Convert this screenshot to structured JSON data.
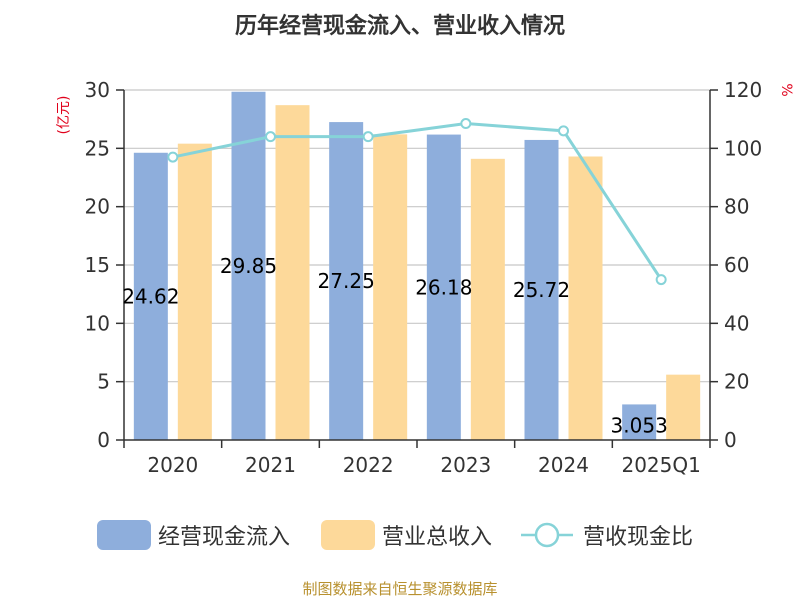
{
  "chart_data": {
    "type": "bar",
    "title": "历年经营现金流入、营业收入情况",
    "categories": [
      "2020",
      "2021",
      "2022",
      "2023",
      "2024",
      "2025Q1"
    ],
    "y_left": {
      "unit": "(亿元)",
      "ylim": [
        0,
        30
      ],
      "ticks": [
        0,
        5,
        10,
        15,
        20,
        25,
        30
      ]
    },
    "y_right": {
      "unit": "%",
      "ylim": [
        0,
        120
      ],
      "ticks": [
        0,
        20,
        40,
        60,
        80,
        100,
        120
      ]
    },
    "series": [
      {
        "name": "经营现金流入",
        "kind": "bar",
        "axis": "left",
        "color": "#8eaedc",
        "values": [
          24.62,
          29.85,
          27.25,
          26.18,
          25.72,
          3.05
        ],
        "labels": [
          "24.62",
          "29.85",
          "27.25",
          "26.18",
          "25.72",
          "3.053"
        ]
      },
      {
        "name": "营业总收入",
        "kind": "bar",
        "axis": "left",
        "color": "#fdd99a",
        "values": [
          25.4,
          28.7,
          26.2,
          24.1,
          24.3,
          5.6
        ]
      },
      {
        "name": "营收现金比",
        "kind": "line",
        "axis": "right",
        "color": "#86d3d8",
        "values": [
          97,
          104,
          104,
          108.5,
          106,
          55
        ]
      }
    ],
    "grid": true,
    "legend_position": "bottom"
  },
  "source": "制图数据来自恒生聚源数据库"
}
